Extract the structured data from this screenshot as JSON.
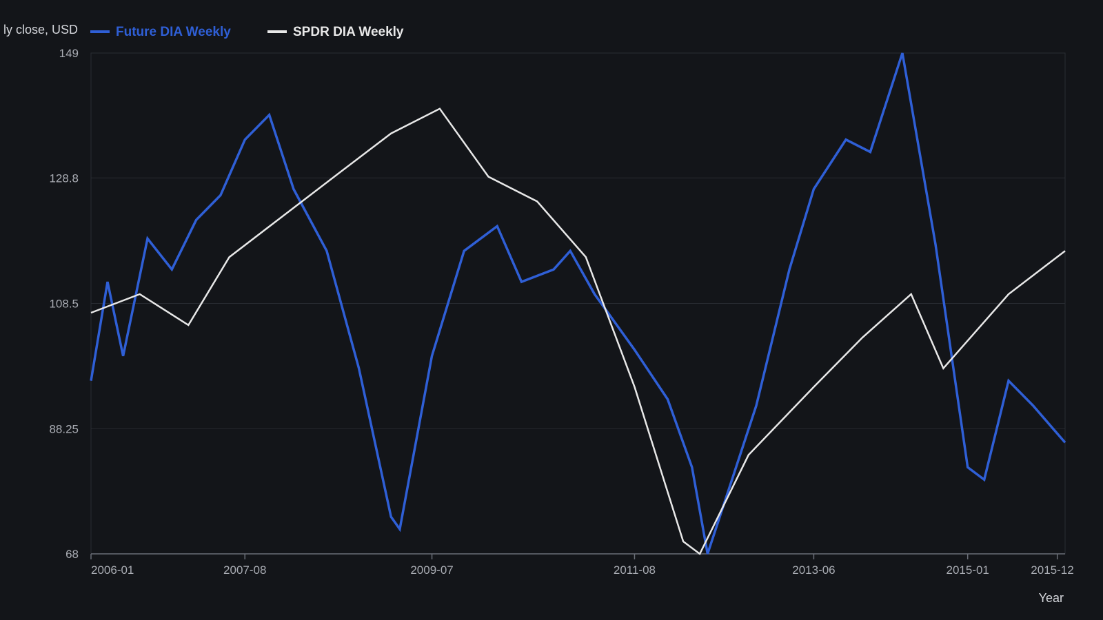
{
  "chart_data": {
    "type": "line",
    "title": "",
    "ylabel": "ly close, USD",
    "xlabel": "Year",
    "ylim": [
      68,
      149
    ],
    "yticks": [
      "149",
      "128.8",
      "108.5",
      "88.25",
      "68"
    ],
    "ytick_values": [
      149,
      128.8,
      108.5,
      88.25,
      68
    ],
    "xlim": [
      2006.0,
      2016.0
    ],
    "xticks": [
      "2006-01",
      "2007-08",
      "2009-07",
      "2011-08",
      "2013-06",
      "2015-01",
      "2015-12"
    ],
    "xtick_values": [
      2006.0,
      2007.58,
      2009.5,
      2011.58,
      2013.42,
      2015.0,
      2015.92
    ],
    "grid": true,
    "legend_position": "top-left",
    "series": [
      {
        "name": "Future DIA Weekly",
        "color": "#2f5fd6",
        "x": [
          2006.0,
          2006.17,
          2006.33,
          2006.58,
          2006.83,
          2007.08,
          2007.33,
          2007.58,
          2007.83,
          2008.08,
          2008.42,
          2008.75,
          2009.08,
          2009.17,
          2009.5,
          2009.83,
          2010.17,
          2010.42,
          2010.75,
          2010.92,
          2011.17,
          2011.58,
          2011.92,
          2012.17,
          2012.33,
          2012.58,
          2012.83,
          2013.17,
          2013.42,
          2013.75,
          2014.0,
          2014.33,
          2014.67,
          2015.0,
          2015.17,
          2015.42,
          2015.67,
          2016.0
        ],
        "values": [
          96,
          112,
          100,
          119,
          114,
          122,
          126,
          135,
          139,
          127,
          117,
          98,
          74,
          72,
          100,
          117,
          121,
          112,
          114,
          117,
          110,
          101,
          93,
          82,
          68,
          80,
          92,
          114,
          127,
          135,
          133,
          149,
          118,
          82,
          80,
          96,
          92,
          86
        ]
      },
      {
        "name": "SPDR DIA Weekly",
        "color": "#e8e8e8",
        "x": [
          2006.0,
          2006.5,
          2007.0,
          2007.42,
          2008.0,
          2008.58,
          2009.08,
          2009.58,
          2010.08,
          2010.58,
          2011.08,
          2011.58,
          2012.08,
          2012.25,
          2012.75,
          2013.42,
          2013.92,
          2014.42,
          2014.75,
          2015.42,
          2016.0
        ],
        "values": [
          107,
          110,
          105,
          116,
          123,
          130,
          136,
          140,
          129,
          125,
          116,
          95,
          70,
          68,
          84,
          95,
          103,
          110,
          98,
          110,
          117
        ]
      }
    ]
  }
}
